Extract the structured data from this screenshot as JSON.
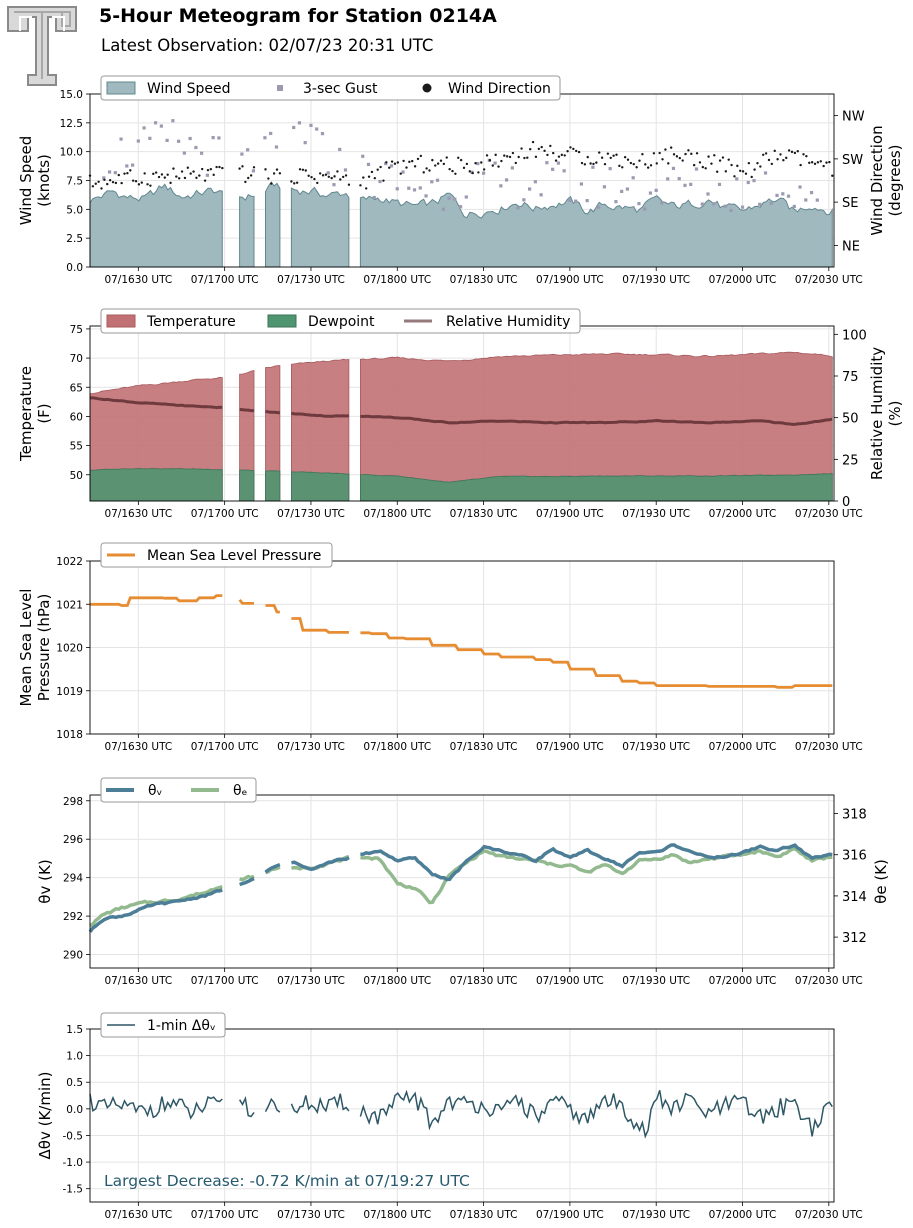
{
  "header": {
    "title": "5-Hour Meteogram for Station 0214A",
    "subtitle": "Latest Observation: 02/07/23 20:31 UTC"
  },
  "colors": {
    "wind_fill": "#9fb9bf",
    "wind_edge": "#62878f",
    "gust": "#9a9ab0",
    "direction": "#1a1a1a",
    "temperature": "#c17174",
    "dewpoint": "#4e9570",
    "humidity": "#6e3a3e",
    "pressure": "#e68c32",
    "theta_v": "#4d7e98",
    "theta_e": "#93ba8f",
    "delta": "#2e5766"
  },
  "gaps": [
    [
      17.0,
      17.07
    ],
    [
      17.18,
      17.22
    ],
    [
      17.33,
      17.38
    ],
    [
      17.72,
      17.78
    ]
  ],
  "chart_data": [
    {
      "type": "area",
      "ylabel": "Wind Speed\n(knots)",
      "y2label": "Wind Direction\n(degrees)",
      "legend": [
        "Wind Speed",
        "3-sec Gust",
        "Wind Direction"
      ],
      "ylim": [
        0,
        15
      ],
      "yticks": [
        "0.0",
        "2.5",
        "5.0",
        "7.5",
        "10.0",
        "12.5",
        "15.0"
      ],
      "y2ticks": [
        "NE",
        "SE",
        "SW",
        "NW"
      ],
      "y2lim": [
        0,
        360
      ],
      "x_ticks": [
        "07/1630 UTC",
        "07/1700 UTC",
        "07/1730 UTC",
        "07/1800 UTC",
        "07/1830 UTC",
        "07/1900 UTC",
        "07/1930 UTC",
        "07/2000 UTC",
        "07/2030 UTC"
      ],
      "xlim": [
        16.22,
        20.53
      ],
      "series": [
        {
          "name": "Wind Speed",
          "x": [
            16.22,
            16.35,
            16.45,
            16.55,
            16.65,
            16.75,
            16.85,
            16.95,
            17.0,
            17.1,
            17.2,
            17.3,
            17.4,
            17.5,
            17.6,
            17.7,
            17.8,
            17.9,
            18.0,
            18.1,
            18.2,
            18.3,
            18.4,
            18.5,
            18.6,
            18.7,
            18.8,
            18.9,
            19.0,
            19.1,
            19.2,
            19.3,
            19.4,
            19.5,
            19.6,
            19.7,
            19.8,
            19.9,
            20.0,
            20.1,
            20.2,
            20.3,
            20.4,
            20.53
          ],
          "values": [
            5.8,
            6.5,
            6.0,
            5.9,
            7.0,
            6.1,
            6.4,
            6.6,
            6.2,
            6.0,
            6.4,
            7.1,
            6.7,
            6.6,
            6.2,
            6.4,
            5.7,
            6.0,
            5.5,
            5.2,
            5.4,
            6.2,
            4.6,
            4.9,
            5.2,
            5.7,
            5.1,
            5.5,
            5.7,
            4.8,
            5.4,
            5.2,
            4.9,
            5.7,
            5.2,
            5.4,
            6.0,
            5.0,
            4.8,
            5.4,
            5.9,
            4.7,
            5.5,
            4.8
          ]
        },
        {
          "name": "3-sec Gust",
          "x": [
            16.3,
            16.5,
            16.7,
            16.9,
            17.1,
            17.3,
            17.45,
            17.6,
            17.85,
            18.05,
            18.25,
            18.45,
            18.65,
            18.85,
            19.05,
            19.25,
            19.45,
            19.65,
            19.85,
            20.05,
            20.25,
            20.45
          ],
          "values": [
            9.5,
            10.2,
            11.0,
            9.8,
            8.7,
            9.8,
            12.2,
            9.1,
            7.8,
            7.2,
            6.8,
            7.5,
            7.0,
            7.4,
            6.7,
            7.1,
            6.5,
            7.2,
            6.3,
            6.9,
            7.0,
            6.4
          ]
        },
        {
          "name": "Wind Direction",
          "x": [
            16.22,
            16.4,
            16.6,
            16.8,
            17.0,
            17.2,
            17.4,
            17.6,
            17.8,
            18.0,
            18.2,
            18.4,
            18.6,
            18.8,
            19.0,
            19.2,
            19.4,
            19.6,
            19.8,
            20.0,
            20.2,
            20.4,
            20.53
          ],
          "values": [
            175,
            182,
            188,
            190,
            195,
            190,
            192,
            188,
            178,
            210,
            215,
            208,
            225,
            245,
            232,
            228,
            218,
            235,
            222,
            195,
            232,
            220,
            196
          ]
        }
      ]
    },
    {
      "type": "area",
      "ylabel": "Temperature\n(F)",
      "y2label": "Relative Humidity\n(%)",
      "legend": [
        "Temperature",
        "Dewpoint",
        "Relative Humidity"
      ],
      "ylim": [
        45.5,
        75.5
      ],
      "yticks": [
        "50",
        "55",
        "60",
        "65",
        "70",
        "75"
      ],
      "y2lim": [
        0,
        105
      ],
      "y2ticks": [
        "0",
        "25",
        "50",
        "75",
        "100"
      ],
      "x_ticks": [
        "07/1630 UTC",
        "07/1700 UTC",
        "07/1730 UTC",
        "07/1800 UTC",
        "07/1830 UTC",
        "07/1900 UTC",
        "07/1930 UTC",
        "07/2000 UTC",
        "07/2030 UTC"
      ],
      "xlim": [
        16.22,
        20.53
      ],
      "series": [
        {
          "name": "Temperature",
          "x": [
            16.22,
            16.5,
            16.8,
            17.0,
            17.3,
            17.6,
            17.8,
            18.0,
            18.3,
            18.6,
            18.9,
            19.2,
            19.5,
            19.8,
            20.1,
            20.3,
            20.53
          ],
          "values": [
            64.0,
            65.2,
            66.2,
            66.7,
            68.6,
            69.5,
            69.8,
            70.0,
            69.5,
            70.3,
            70.5,
            70.7,
            70.6,
            70.3,
            70.7,
            71.0,
            70.4
          ]
        },
        {
          "name": "Dewpoint",
          "x": [
            16.22,
            16.5,
            16.8,
            17.0,
            17.3,
            17.6,
            17.8,
            18.0,
            18.3,
            18.6,
            18.9,
            19.2,
            19.5,
            19.8,
            20.1,
            20.3,
            20.53
          ],
          "values": [
            50.8,
            51.1,
            51.0,
            50.9,
            50.6,
            50.3,
            50.0,
            49.8,
            48.7,
            49.7,
            49.7,
            49.8,
            49.8,
            49.8,
            49.9,
            50.0,
            50.2
          ]
        },
        {
          "name": "Relative Humidity",
          "x": [
            16.22,
            16.5,
            16.8,
            17.0,
            17.3,
            17.6,
            17.8,
            18.0,
            18.3,
            18.6,
            18.9,
            19.2,
            19.5,
            19.8,
            20.1,
            20.3,
            20.53
          ],
          "values": [
            62,
            59,
            57,
            56,
            53,
            51,
            51,
            50,
            47,
            48,
            47,
            47,
            48,
            47,
            48,
            46,
            49
          ]
        }
      ]
    },
    {
      "type": "line",
      "ylabel": "Mean Sea Level\nPressure (hPa)",
      "legend": [
        "Mean Sea Level Pressure"
      ],
      "ylim": [
        1018,
        1022
      ],
      "yticks": [
        "1018",
        "1019",
        "1020",
        "1021",
        "1022"
      ],
      "x_ticks": [
        "07/1630 UTC",
        "07/1700 UTC",
        "07/1730 UTC",
        "07/1800 UTC",
        "07/1830 UTC",
        "07/1900 UTC",
        "07/1930 UTC",
        "07/2000 UTC",
        "07/2030 UTC"
      ],
      "xlim": [
        16.22,
        20.53
      ],
      "series": [
        {
          "name": "Mean Sea Level Pressure",
          "x": [
            16.22,
            16.4,
            16.45,
            16.65,
            16.72,
            16.85,
            16.95,
            17.0,
            17.1,
            17.2,
            17.3,
            17.38,
            17.45,
            17.6,
            17.75,
            17.85,
            17.95,
            18.05,
            18.2,
            18.35,
            18.5,
            18.6,
            18.8,
            18.9,
            19.0,
            19.15,
            19.3,
            19.4,
            19.5,
            19.8,
            20.0,
            20.2,
            20.3,
            20.53
          ],
          "values": [
            1021.0,
            1020.97,
            1021.15,
            1021.14,
            1021.08,
            1021.15,
            1021.2,
            1021.1,
            1021.02,
            1020.97,
            1020.82,
            1020.67,
            1020.4,
            1020.35,
            1020.34,
            1020.32,
            1020.22,
            1020.2,
            1020.05,
            1019.95,
            1019.85,
            1019.78,
            1019.72,
            1019.66,
            1019.5,
            1019.35,
            1019.22,
            1019.18,
            1019.12,
            1019.1,
            1019.1,
            1019.08,
            1019.12,
            1019.12
          ]
        }
      ]
    },
    {
      "type": "line",
      "ylabel": "θv (K)",
      "y2label": "θe (K)",
      "legend": [
        "θv",
        "θe"
      ],
      "ylim": [
        289.3,
        298.3
      ],
      "yticks": [
        "290",
        "292",
        "294",
        "296",
        "298"
      ],
      "y2lim": [
        310.5,
        318.9
      ],
      "y2ticks": [
        "312",
        "314",
        "316",
        "318"
      ],
      "x_ticks": [
        "07/1630 UTC",
        "07/1700 UTC",
        "07/1730 UTC",
        "07/1800 UTC",
        "07/1830 UTC",
        "07/1900 UTC",
        "07/1930 UTC",
        "07/2000 UTC",
        "07/2030 UTC"
      ],
      "xlim": [
        16.22,
        20.53
      ],
      "series": [
        {
          "name": "θv",
          "x": [
            16.22,
            16.3,
            16.4,
            16.5,
            16.6,
            16.7,
            16.8,
            16.9,
            17.0,
            17.1,
            17.2,
            17.3,
            17.4,
            17.5,
            17.6,
            17.7,
            17.8,
            17.9,
            18.0,
            18.1,
            18.2,
            18.3,
            18.4,
            18.5,
            18.6,
            18.7,
            18.8,
            18.9,
            19.0,
            19.1,
            19.2,
            19.3,
            19.4,
            19.5,
            19.6,
            19.7,
            19.8,
            19.9,
            20.0,
            20.1,
            20.2,
            20.3,
            20.4,
            20.53
          ],
          "values": [
            291.2,
            291.9,
            292.0,
            292.3,
            292.6,
            292.7,
            292.9,
            293.1,
            293.4,
            293.6,
            294.1,
            294.6,
            294.8,
            294.5,
            294.8,
            295.0,
            295.2,
            295.4,
            294.9,
            295.0,
            294.2,
            293.9,
            294.8,
            295.6,
            295.4,
            295.2,
            294.9,
            295.5,
            295.0,
            295.4,
            295.0,
            294.6,
            295.3,
            295.3,
            295.7,
            295.4,
            295.0,
            295.1,
            295.3,
            295.6,
            295.4,
            295.7,
            295.0,
            295.2
          ]
        },
        {
          "name": "θe",
          "x": [
            16.22,
            16.3,
            16.4,
            16.5,
            16.6,
            16.7,
            16.8,
            16.9,
            17.0,
            17.1,
            17.2,
            17.3,
            17.4,
            17.5,
            17.6,
            17.7,
            17.8,
            17.9,
            18.0,
            18.1,
            18.2,
            18.3,
            18.4,
            18.5,
            18.6,
            18.7,
            18.8,
            18.9,
            19.0,
            19.1,
            19.2,
            19.3,
            19.4,
            19.5,
            19.6,
            19.7,
            19.8,
            19.9,
            20.0,
            20.1,
            20.2,
            20.3,
            20.4,
            20.53
          ],
          "values": [
            312.6,
            313.1,
            313.4,
            313.6,
            313.7,
            313.8,
            314.0,
            314.2,
            314.6,
            314.8,
            315.0,
            315.4,
            315.3,
            315.4,
            315.6,
            315.8,
            315.9,
            315.8,
            314.6,
            314.4,
            313.6,
            315.0,
            315.6,
            316.2,
            315.9,
            315.8,
            315.7,
            315.5,
            315.5,
            315.1,
            315.5,
            315.1,
            315.7,
            315.8,
            316.0,
            315.6,
            315.8,
            315.9,
            316.0,
            316.2,
            315.9,
            316.3,
            315.7,
            315.9
          ]
        }
      ]
    },
    {
      "type": "line",
      "ylabel": "Δθv (K/min)",
      "legend": [
        "1-min Δθv"
      ],
      "ylim": [
        -1.75,
        1.5
      ],
      "yticks": [
        "-1.5",
        "-1.0",
        "-0.5",
        "0.0",
        "0.5",
        "1.0",
        "1.5"
      ],
      "x_ticks": [
        "07/1630 UTC",
        "07/1700 UTC",
        "07/1730 UTC",
        "07/1800 UTC",
        "07/1830 UTC",
        "07/1900 UTC",
        "07/1930 UTC",
        "07/2000 UTC",
        "07/2030 UTC"
      ],
      "xlim": [
        16.22,
        20.53
      ],
      "annotation": "Largest Decrease: -0.72 K/min at 07/19:27 UTC",
      "series": [
        {
          "name": "1-min Δθv",
          "x": [
            16.22,
            16.3,
            16.4,
            16.5,
            16.6,
            16.7,
            16.8,
            16.9,
            17.0,
            17.1,
            17.2,
            17.3,
            17.4,
            17.5,
            17.6,
            17.7,
            17.8,
            17.9,
            18.0,
            18.1,
            18.2,
            18.3,
            18.4,
            18.5,
            18.6,
            18.7,
            18.8,
            18.9,
            19.0,
            19.1,
            19.2,
            19.3,
            19.4,
            19.45,
            19.5,
            19.6,
            19.7,
            19.8,
            19.9,
            20.0,
            20.1,
            20.2,
            20.3,
            20.4,
            20.53
          ],
          "values": [
            0.3,
            0.0,
            0.1,
            -0.1,
            0.05,
            0.2,
            -0.15,
            0.1,
            0.05,
            0.3,
            -0.3,
            0.15,
            0.0,
            0.2,
            0.0,
            0.25,
            -0.1,
            -0.3,
            0.2,
            0.4,
            -0.5,
            0.3,
            0.1,
            0.2,
            -0.2,
            0.35,
            -0.3,
            0.2,
            0.0,
            -0.4,
            0.3,
            0.1,
            -0.5,
            -0.72,
            0.4,
            0.0,
            0.3,
            -0.2,
            0.1,
            0.2,
            -0.3,
            0.0,
            0.25,
            -0.6,
            0.15
          ]
        }
      ]
    }
  ]
}
